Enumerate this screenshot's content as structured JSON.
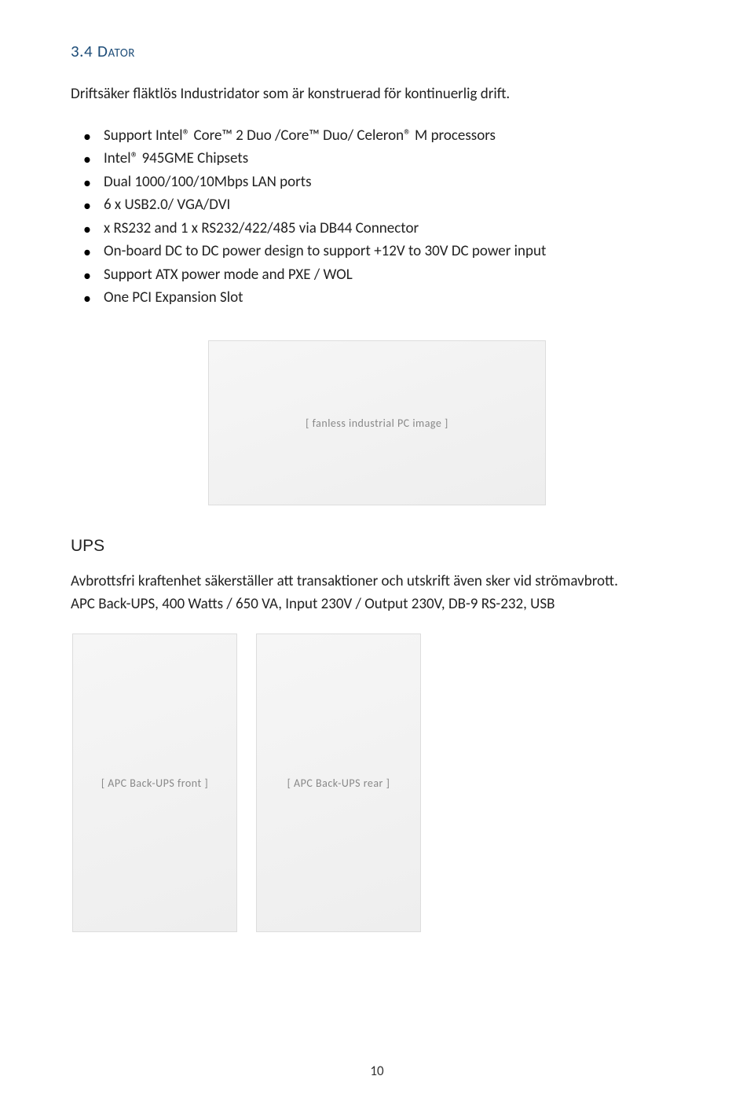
{
  "colors": {
    "heading": "#1f4e79",
    "text": "#222222",
    "page_bg": "#ffffff"
  },
  "heading": {
    "number": "3.4",
    "title": "Dator"
  },
  "intro": "Driftsäker fläktlös Industridator som är konstruerad för kontinuerlig drift.",
  "specs": [
    "Support Intel® Core™ 2 Duo /Core™ Duo/ Celeron® M processors",
    "Intel® 945GME Chipsets",
    "Dual 1000/100/10Mbps LAN ports",
    "6 x USB2.0/ VGA/DVI",
    "x RS232 and 1 x RS232/422/485 via DB44 Connector",
    "On-board DC to DC power design to support +12V to 30V DC power input",
    "Support ATX power mode and PXE / WOL",
    "One PCI Expansion Slot"
  ],
  "image_labels": {
    "computer": "[ fanless industrial PC image ]",
    "ups_front": "[ APC Back-UPS front ]",
    "ups_back": "[ APC Back-UPS rear ]"
  },
  "ups": {
    "heading": "UPS",
    "line1": "Avbrottsfri kraftenhet säkerställer att transaktioner och utskrift även sker vid strömavbrott.",
    "line2": "APC Back-UPS, 400 Watts / 650 VA, Input 230V / Output 230V, DB-9 RS-232, USB"
  },
  "page_number": "10"
}
